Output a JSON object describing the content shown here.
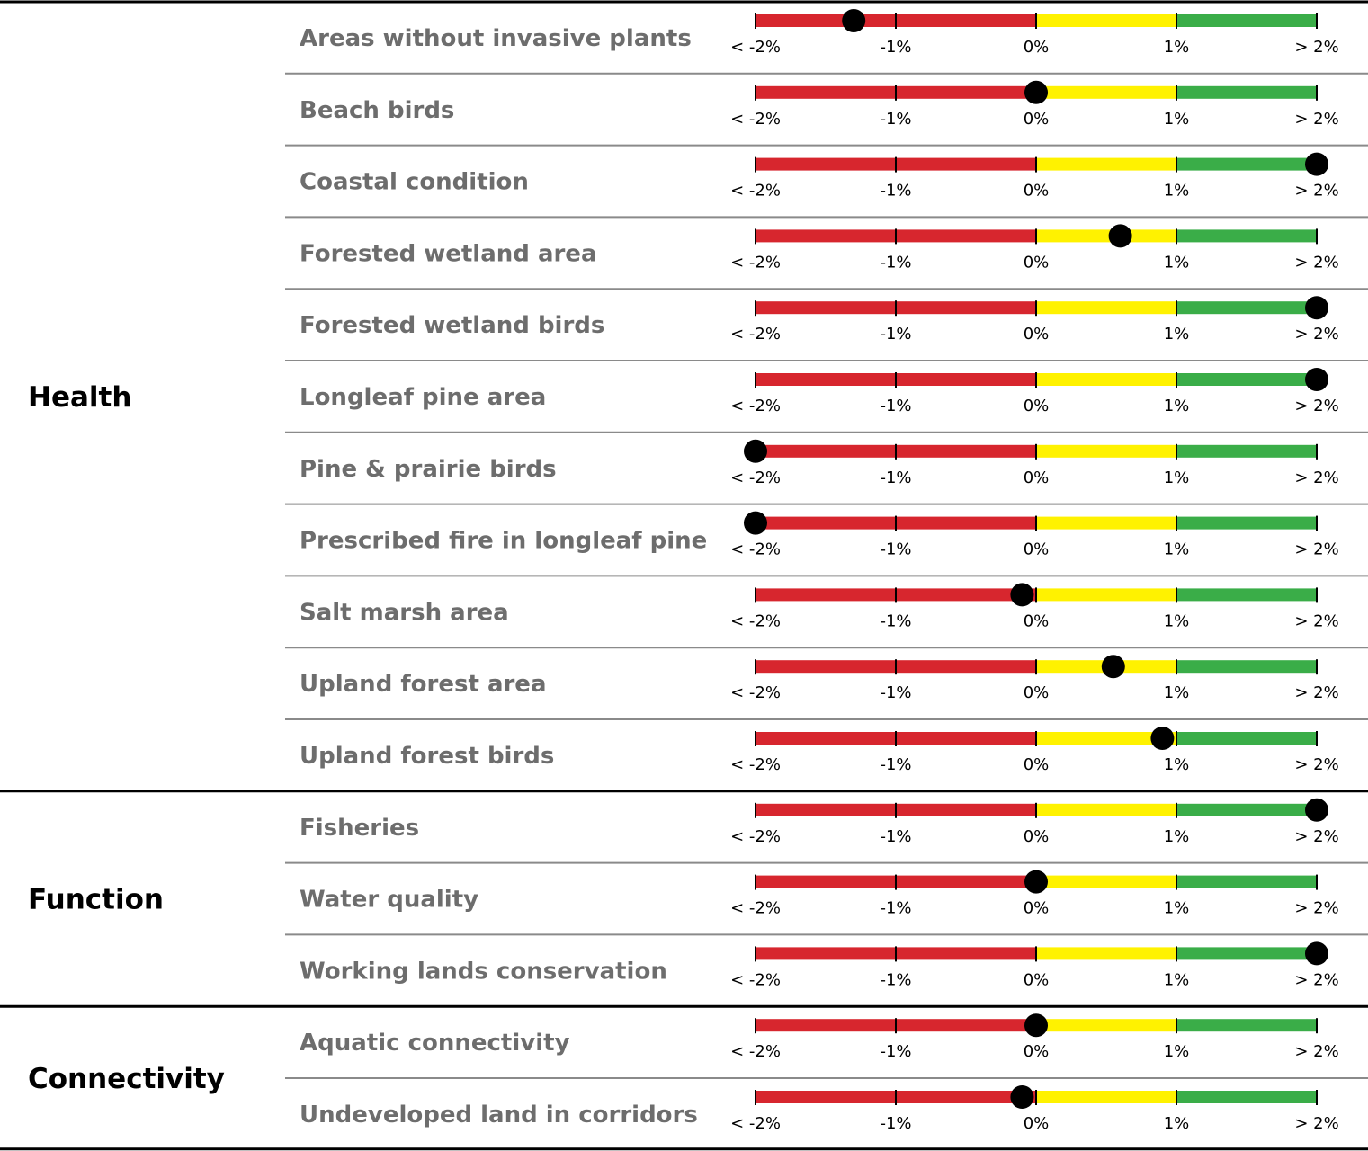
{
  "chart_data": {
    "type": "bullet-scale",
    "scale": {
      "min": -2,
      "max": 2,
      "ticks": [
        -2,
        -1,
        0,
        1,
        2
      ],
      "tick_labels": [
        "< -2%",
        "-1%",
        "0%",
        "1%",
        "> 2%"
      ]
    },
    "bands": [
      {
        "from": -2,
        "to": 0,
        "color": "#d7262e"
      },
      {
        "from": 0,
        "to": 1,
        "color": "#fff200"
      },
      {
        "from": 1,
        "to": 2,
        "color": "#3aad48"
      }
    ],
    "marker_color": "#000000",
    "groups": [
      {
        "name": "Health",
        "indicators": [
          {
            "label": "Areas without invasive plants",
            "value": -1.3
          },
          {
            "label": "Beach birds",
            "value": 0.0
          },
          {
            "label": "Coastal condition",
            "value": 2.0
          },
          {
            "label": "Forested wetland area",
            "value": 0.6
          },
          {
            "label": "Forested wetland birds",
            "value": 2.0
          },
          {
            "label": "Longleaf pine area",
            "value": 2.0
          },
          {
            "label": "Pine & prairie birds",
            "value": -2.0
          },
          {
            "label": "Prescribed fire in longleaf pine",
            "value": -2.0
          },
          {
            "label": "Salt marsh area",
            "value": -0.1
          },
          {
            "label": "Upland forest area",
            "value": 0.55
          },
          {
            "label": "Upland forest birds",
            "value": 0.9
          }
        ]
      },
      {
        "name": "Function",
        "indicators": [
          {
            "label": "Fisheries",
            "value": 2.0
          },
          {
            "label": "Water quality",
            "value": 0.0
          },
          {
            "label": "Working lands conservation",
            "value": 2.0
          }
        ]
      },
      {
        "name": "Connectivity",
        "indicators": [
          {
            "label": "Aquatic connectivity",
            "value": 0.0
          },
          {
            "label": "Undeveloped land in corridors",
            "value": -0.1
          }
        ]
      }
    ]
  }
}
